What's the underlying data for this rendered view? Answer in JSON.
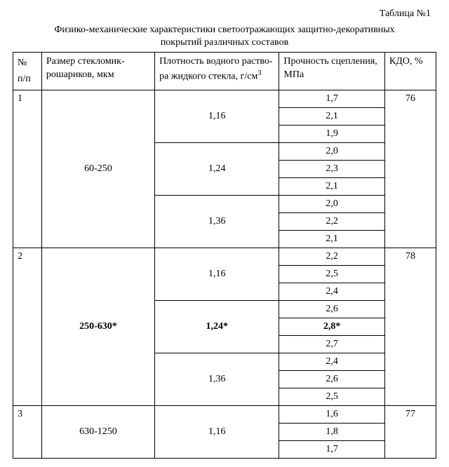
{
  "tableNumber": "Таблица №1",
  "captionLine1": "Физико-механические характеристики светоотражающих защитно-декоративных",
  "captionLine2": "покрытий различных составов",
  "headers": {
    "num": "№ п/п",
    "size": "Размер стекломик­рошариков, мкм",
    "density_pre": "Плотность водного раство­ра жидкого стекла, г/см",
    "density_sup": "3",
    "strength": "Прочность сцепле­ния, МПа",
    "kdo": "КДО, %"
  },
  "groups": [
    {
      "num": "1",
      "size": "60-250",
      "sizeBold": false,
      "kdo": "76",
      "densityGroups": [
        {
          "density": "1,16",
          "bold": false,
          "strengths": [
            "1,7",
            "2,1",
            "1,9"
          ],
          "strengthBold": [
            false,
            false,
            false
          ]
        },
        {
          "density": "1,24",
          "bold": false,
          "strengths": [
            "2,0",
            "2,3",
            "2,1"
          ],
          "strengthBold": [
            false,
            false,
            false
          ]
        },
        {
          "density": "1,36",
          "bold": false,
          "strengths": [
            "2,0",
            "2,2",
            "2,1"
          ],
          "strengthBold": [
            false,
            false,
            false
          ]
        }
      ]
    },
    {
      "num": "2",
      "size": "250-630*",
      "sizeBold": true,
      "kdo": "78",
      "densityGroups": [
        {
          "density": "1,16",
          "bold": false,
          "strengths": [
            "2,2",
            "2,5",
            "2,4"
          ],
          "strengthBold": [
            false,
            false,
            false
          ]
        },
        {
          "density": "1,24*",
          "bold": true,
          "strengths": [
            "2,6",
            "2,8*",
            "2,7"
          ],
          "strengthBold": [
            false,
            true,
            false
          ]
        },
        {
          "density": "1,36",
          "bold": false,
          "strengths": [
            "2,4",
            "2,6",
            "2,5"
          ],
          "strengthBold": [
            false,
            false,
            false
          ]
        }
      ]
    },
    {
      "num": "3",
      "size": "630-1250",
      "sizeBold": false,
      "kdo": "77",
      "densityGroups": [
        {
          "density": "1,16",
          "bold": false,
          "strengths": [
            "1,6",
            "1,8",
            "1,7"
          ],
          "strengthBold": [
            false,
            false,
            false
          ]
        }
      ]
    }
  ]
}
